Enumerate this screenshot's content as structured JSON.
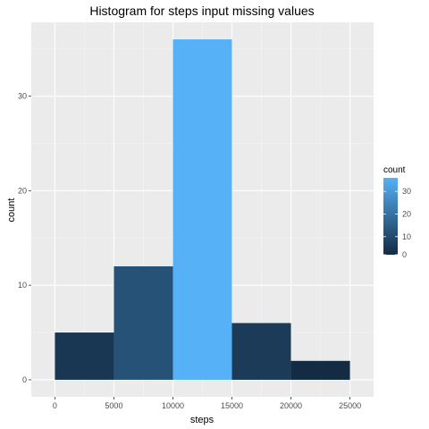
{
  "chart_data": {
    "type": "bar",
    "title": "Histogram for steps input missing values",
    "xlabel": "steps",
    "ylabel": "count",
    "bins": [
      {
        "x0": 0,
        "x1": 5000,
        "count": 5
      },
      {
        "x0": 5000,
        "x1": 10000,
        "count": 12
      },
      {
        "x0": 10000,
        "x1": 15000,
        "count": 36
      },
      {
        "x0": 15000,
        "x1": 20000,
        "count": 6
      },
      {
        "x0": 20000,
        "x1": 25000,
        "count": 2
      }
    ],
    "xlim": [
      -2000,
      27000
    ],
    "ylim": [
      -1.8,
      37.8
    ],
    "xticks": [
      0,
      5000,
      10000,
      15000,
      20000,
      25000
    ],
    "xtick_labels": [
      "0",
      "5000",
      "10000",
      "15000",
      "20000",
      "25000"
    ],
    "yticks": [
      0,
      10,
      20,
      30
    ],
    "ytick_labels": [
      "0",
      "10",
      "20",
      "30"
    ],
    "grid": true,
    "legend": {
      "title": "count",
      "placement": "right",
      "gradient": {
        "low": "#132b43",
        "high": "#56b1f7"
      },
      "range": [
        2,
        36
      ],
      "ticks": [
        0,
        10,
        20,
        30
      ],
      "tick_labels": [
        "0",
        "10",
        "20",
        "30"
      ]
    },
    "colors": {
      "panel": "#ebebeb",
      "grid_major": "#ffffff",
      "grid_minor": "#f5f5f5"
    }
  }
}
